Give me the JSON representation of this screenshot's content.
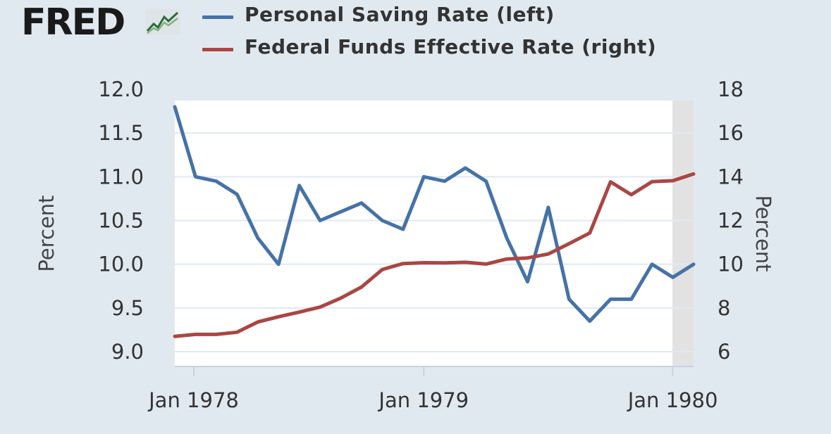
{
  "logo": {
    "text": "FRED",
    "icon": "fred-chart-icon"
  },
  "colors": {
    "background": "#e1e9f0",
    "plot_bg": "#ffffff",
    "recession": "#e2e2e2",
    "grid": "#e1e9f0"
  },
  "chart_data": {
    "type": "line",
    "x": [
      "1978-01",
      "1978-02",
      "1978-03",
      "1978-04",
      "1978-05",
      "1978-06",
      "1978-07",
      "1978-08",
      "1978-09",
      "1978-10",
      "1978-11",
      "1978-12",
      "1979-01",
      "1979-02",
      "1979-03",
      "1979-04",
      "1979-05",
      "1979-06",
      "1979-07",
      "1979-08",
      "1979-09",
      "1979-10",
      "1979-11",
      "1979-12",
      "1980-01",
      "1980-02"
    ],
    "series": [
      {
        "name": "Personal Saving Rate (left)",
        "axis": "left",
        "color": "#4572a7",
        "values": [
          11.8,
          11.0,
          10.95,
          10.8,
          10.3,
          10.0,
          10.9,
          10.5,
          10.6,
          10.7,
          10.5,
          10.4,
          11.0,
          10.95,
          11.1,
          10.95,
          10.3,
          9.8,
          10.65,
          9.6,
          9.35,
          9.6,
          9.6,
          10.0,
          9.85,
          10.0
        ]
      },
      {
        "name": "Federal Funds Effective Rate (right)",
        "axis": "right",
        "color": "#aa4643",
        "values": [
          6.7,
          6.79,
          6.79,
          6.89,
          7.36,
          7.6,
          7.81,
          8.04,
          8.45,
          8.96,
          9.76,
          10.03,
          10.07,
          10.06,
          10.09,
          10.01,
          10.24,
          10.29,
          10.47,
          10.94,
          11.43,
          13.77,
          13.18,
          13.78,
          13.82,
          14.13
        ]
      }
    ],
    "x_tick_labels": [
      "Jan 1978",
      "Jan 1979",
      "Jan 1980"
    ],
    "y_left": {
      "label": "Percent",
      "ticks": [
        "9.0",
        "9.5",
        "10.0",
        "10.5",
        "11.0",
        "11.5",
        "12.0"
      ],
      "range": [
        8.95,
        12.0
      ]
    },
    "y_right": {
      "label": "Percent",
      "ticks": [
        "6",
        "8",
        "10",
        "12",
        "14",
        "16",
        "18"
      ],
      "range": [
        6.0,
        18.0
      ]
    },
    "recession": {
      "start": "1980-01",
      "end": "1980-02"
    },
    "grid": true,
    "legend": "top"
  }
}
